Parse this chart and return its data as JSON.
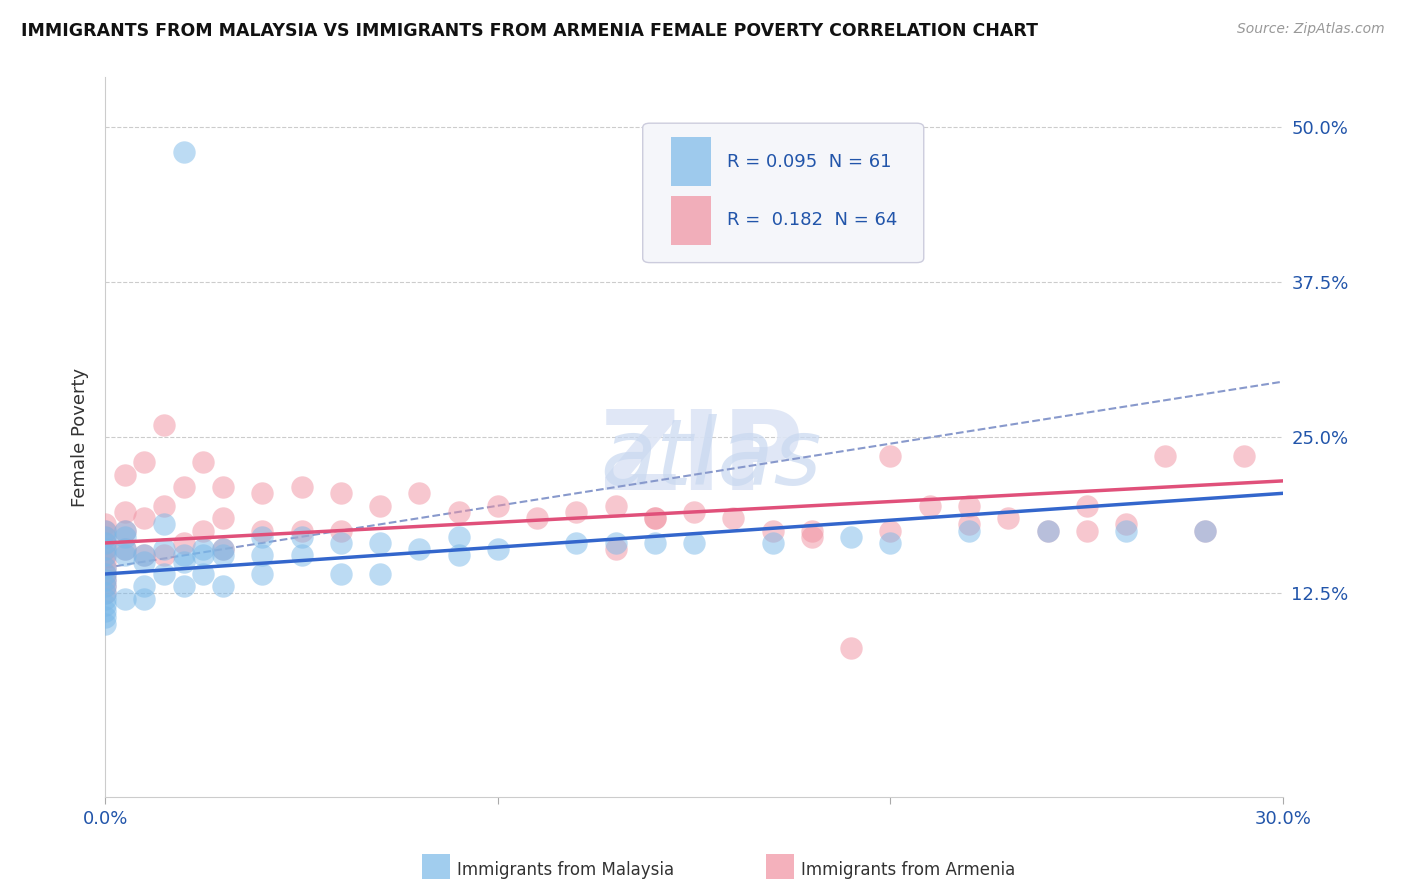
{
  "title": "IMMIGRANTS FROM MALAYSIA VS IMMIGRANTS FROM ARMENIA FEMALE POVERTY CORRELATION CHART",
  "source": "Source: ZipAtlas.com",
  "ylabel": "Female Poverty",
  "xlim": [
    0.0,
    0.3
  ],
  "ylim": [
    -0.04,
    0.54
  ],
  "ytick_labels": [
    "50.0%",
    "37.5%",
    "25.0%",
    "12.5%"
  ],
  "ytick_values": [
    0.5,
    0.375,
    0.25,
    0.125
  ],
  "malaysia_color": "#7ab8e8",
  "armenia_color": "#f090a0",
  "malaysia_line_color": "#3366cc",
  "armenia_line_color": "#e0507a",
  "dashed_line_color": "#8899cc",
  "legend_box_color": "#eef0f8",
  "legend_border_color": "#ccccdd",
  "malaysia_R": 0.095,
  "armenia_R": 0.182,
  "malaysia_N": 61,
  "armenia_N": 64,
  "legend_subtitle_1": "Immigrants from Malaysia",
  "legend_subtitle_2": "Immigrants from Armenia",
  "malaysia_scatter_x": [
    0.0,
    0.0,
    0.0,
    0.0,
    0.0,
    0.0,
    0.0,
    0.0,
    0.0,
    0.0,
    0.0,
    0.0,
    0.0,
    0.0,
    0.0,
    0.005,
    0.005,
    0.005,
    0.005,
    0.005,
    0.01,
    0.01,
    0.01,
    0.01,
    0.015,
    0.015,
    0.015,
    0.02,
    0.02,
    0.02,
    0.025,
    0.025,
    0.025,
    0.03,
    0.03,
    0.03,
    0.04,
    0.04,
    0.04,
    0.05,
    0.05,
    0.06,
    0.06,
    0.07,
    0.07,
    0.08,
    0.09,
    0.09,
    0.1,
    0.12,
    0.13,
    0.14,
    0.15,
    0.17,
    0.19,
    0.2,
    0.22,
    0.24,
    0.26,
    0.28,
    0.02
  ],
  "malaysia_scatter_y": [
    0.155,
    0.16,
    0.165,
    0.17,
    0.175,
    0.145,
    0.14,
    0.135,
    0.13,
    0.125,
    0.12,
    0.115,
    0.11,
    0.105,
    0.1,
    0.155,
    0.16,
    0.17,
    0.175,
    0.12,
    0.15,
    0.155,
    0.13,
    0.12,
    0.16,
    0.18,
    0.14,
    0.155,
    0.15,
    0.13,
    0.16,
    0.155,
    0.14,
    0.16,
    0.155,
    0.13,
    0.17,
    0.155,
    0.14,
    0.17,
    0.155,
    0.165,
    0.14,
    0.165,
    0.14,
    0.16,
    0.17,
    0.155,
    0.16,
    0.165,
    0.165,
    0.165,
    0.165,
    0.165,
    0.17,
    0.165,
    0.175,
    0.175,
    0.175,
    0.175,
    0.48
  ],
  "armenia_scatter_x": [
    0.0,
    0.0,
    0.0,
    0.0,
    0.0,
    0.0,
    0.0,
    0.0,
    0.0,
    0.0,
    0.0,
    0.0,
    0.005,
    0.005,
    0.005,
    0.005,
    0.01,
    0.01,
    0.01,
    0.015,
    0.015,
    0.015,
    0.02,
    0.02,
    0.025,
    0.025,
    0.03,
    0.03,
    0.03,
    0.04,
    0.04,
    0.05,
    0.05,
    0.06,
    0.06,
    0.07,
    0.08,
    0.09,
    0.1,
    0.11,
    0.12,
    0.13,
    0.14,
    0.15,
    0.16,
    0.17,
    0.18,
    0.19,
    0.2,
    0.21,
    0.22,
    0.23,
    0.24,
    0.25,
    0.26,
    0.27,
    0.28,
    0.29,
    0.13,
    0.14,
    0.18,
    0.2,
    0.22,
    0.25
  ],
  "armenia_scatter_y": [
    0.18,
    0.175,
    0.17,
    0.165,
    0.16,
    0.155,
    0.15,
    0.145,
    0.14,
    0.135,
    0.13,
    0.125,
    0.22,
    0.19,
    0.175,
    0.16,
    0.23,
    0.185,
    0.155,
    0.26,
    0.195,
    0.155,
    0.21,
    0.165,
    0.23,
    0.175,
    0.21,
    0.185,
    0.16,
    0.205,
    0.175,
    0.21,
    0.175,
    0.205,
    0.175,
    0.195,
    0.205,
    0.19,
    0.195,
    0.185,
    0.19,
    0.195,
    0.185,
    0.19,
    0.185,
    0.175,
    0.17,
    0.08,
    0.175,
    0.195,
    0.18,
    0.185,
    0.175,
    0.195,
    0.18,
    0.235,
    0.175,
    0.235,
    0.16,
    0.185,
    0.175,
    0.235,
    0.195,
    0.175
  ]
}
